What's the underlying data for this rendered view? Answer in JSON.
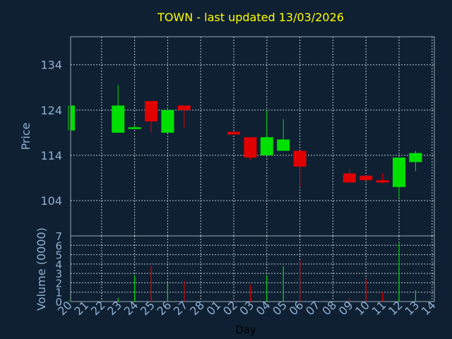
{
  "colors": {
    "background": "#0f2033",
    "frame": "#9aa6b2",
    "grid": "#b8c2cc",
    "up": "#00e000",
    "down": "#e00000",
    "title": "#ffff00",
    "axis_text": "#8fb0d0",
    "xlabel_text": "#000000"
  },
  "chart_data": [
    {
      "type": "candlestick",
      "title": "TOWN - last updated 13/03/2026",
      "ylabel": "Price",
      "ylim": [
        96.2,
        140.2
      ],
      "yticks": [
        104,
        114,
        124,
        134
      ],
      "grid": true,
      "categories": [
        "20",
        "21",
        "22",
        "23",
        "24",
        "25",
        "26",
        "27",
        "28",
        "01",
        "02",
        "03",
        "04",
        "05",
        "06",
        "07",
        "08",
        "09",
        "10",
        "11",
        "12",
        "13",
        "14"
      ],
      "candles": [
        {
          "x": "20",
          "open": 119.5,
          "close": 125.0,
          "high": 125.0,
          "low": 119.5,
          "dir": "up"
        },
        {
          "x": "23",
          "open": 119.0,
          "close": 125.0,
          "high": 129.5,
          "low": 119.0,
          "dir": "up"
        },
        {
          "x": "24",
          "open": 119.8,
          "close": 120.2,
          "high": 120.5,
          "low": 119.8,
          "dir": "up"
        },
        {
          "x": "25",
          "open": 126.0,
          "close": 121.5,
          "high": 126.0,
          "low": 119.0,
          "dir": "down"
        },
        {
          "x": "26",
          "open": 119.0,
          "close": 124.0,
          "high": 124.5,
          "low": 119.0,
          "dir": "up"
        },
        {
          "x": "27",
          "open": 125.0,
          "close": 124.0,
          "high": 125.0,
          "low": 120.0,
          "dir": "down"
        },
        {
          "x": "02",
          "open": 119.2,
          "close": 118.6,
          "high": 119.2,
          "low": 118.6,
          "dir": "down"
        },
        {
          "x": "03",
          "open": 118.0,
          "close": 113.5,
          "high": 118.0,
          "low": 113.0,
          "dir": "down"
        },
        {
          "x": "04",
          "open": 114.0,
          "close": 118.0,
          "high": 124.0,
          "low": 114.0,
          "dir": "up"
        },
        {
          "x": "05",
          "open": 115.0,
          "close": 117.5,
          "high": 122.0,
          "low": 115.0,
          "dir": "up"
        },
        {
          "x": "06",
          "open": 115.0,
          "close": 111.5,
          "high": 115.0,
          "low": 107.0,
          "dir": "down"
        },
        {
          "x": "09",
          "open": 110.0,
          "close": 108.0,
          "high": 111.0,
          "low": 108.0,
          "dir": "down"
        },
        {
          "x": "10",
          "open": 109.5,
          "close": 108.5,
          "high": 109.5,
          "low": 108.5,
          "dir": "down"
        },
        {
          "x": "11",
          "open": 108.5,
          "close": 108.0,
          "high": 110.0,
          "low": 107.8,
          "dir": "down"
        },
        {
          "x": "12",
          "open": 107.0,
          "close": 113.5,
          "high": 113.5,
          "low": 104.5,
          "dir": "up"
        },
        {
          "x": "13",
          "open": 112.5,
          "close": 114.5,
          "high": 115.0,
          "low": 110.5,
          "dir": "up"
        }
      ]
    },
    {
      "type": "bar",
      "ylabel": "Volume (0000)",
      "ylim": [
        0,
        7
      ],
      "yticks": [
        0,
        1,
        2,
        3,
        4,
        5,
        6,
        7
      ],
      "xlabel": "Day",
      "grid": true,
      "bars": [
        {
          "x": "20",
          "value": 0.1,
          "dir": "up"
        },
        {
          "x": "23",
          "value": 0.4,
          "dir": "up"
        },
        {
          "x": "24",
          "value": 2.8,
          "dir": "up"
        },
        {
          "x": "25",
          "value": 3.8,
          "dir": "down"
        },
        {
          "x": "26",
          "value": 2.0,
          "dir": "up"
        },
        {
          "x": "27",
          "value": 2.2,
          "dir": "down"
        },
        {
          "x": "02",
          "value": 0.1,
          "dir": "down"
        },
        {
          "x": "03",
          "value": 1.8,
          "dir": "down"
        },
        {
          "x": "04",
          "value": 2.8,
          "dir": "up"
        },
        {
          "x": "05",
          "value": 3.8,
          "dir": "up"
        },
        {
          "x": "06",
          "value": 4.4,
          "dir": "down"
        },
        {
          "x": "09",
          "value": 0.4,
          "dir": "down"
        },
        {
          "x": "10",
          "value": 2.4,
          "dir": "down"
        },
        {
          "x": "11",
          "value": 1.0,
          "dir": "down"
        },
        {
          "x": "12",
          "value": 6.2,
          "dir": "up"
        },
        {
          "x": "13",
          "value": 1.2,
          "dir": "up"
        }
      ]
    }
  ]
}
